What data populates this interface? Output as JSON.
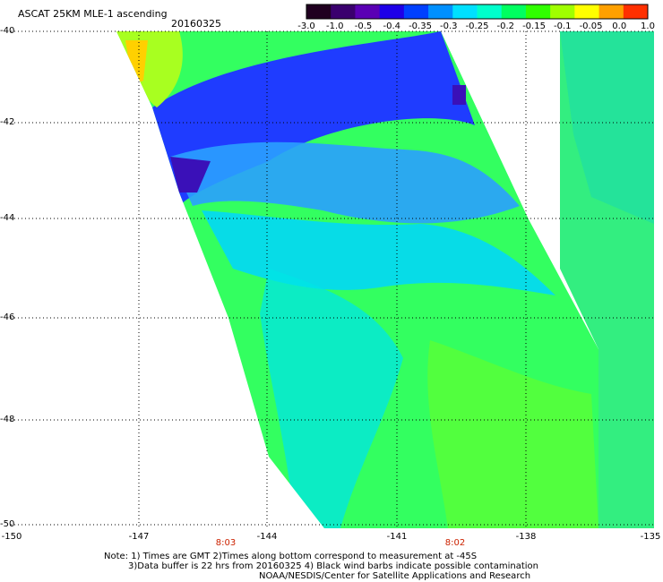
{
  "header": {
    "title": "ASCAT 25KM MLE-1 ascending",
    "date": "20160325"
  },
  "colorbar": {
    "labels": [
      "-3.0",
      "-1.0",
      "-0.5",
      "-0.4",
      "-0.35",
      "-0.3",
      "-0.25",
      "-0.2",
      "-0.15",
      "-0.1",
      "-0.05",
      "0.0",
      "1.0"
    ],
    "colors": [
      "#200020",
      "#3a006e",
      "#5a00b4",
      "#1e00e8",
      "#0040ff",
      "#0090ff",
      "#00e0ff",
      "#00ffcc",
      "#00ff60",
      "#30ff00",
      "#a0ff00",
      "#ffff00",
      "#ffa000",
      "#ff3000"
    ]
  },
  "map": {
    "lat_labels": [
      "-40",
      "-42",
      "-44",
      "-46",
      "-48",
      "-50"
    ],
    "lon_labels": [
      "-150",
      "-147",
      "-144",
      "-141",
      "-138",
      "-135"
    ],
    "time_labels": [
      "8:03",
      "8:02"
    ]
  },
  "notes": {
    "line1": "Note: 1) Times are GMT 2)Times along bottom correspond to measurement at -45S",
    "line2": "3)Data buffer is 22 hrs from 20160325 4) Black wind barbs indicate possible contamination",
    "line3": "NOAA/NESDIS/Center for Satellite Applications and Research"
  }
}
